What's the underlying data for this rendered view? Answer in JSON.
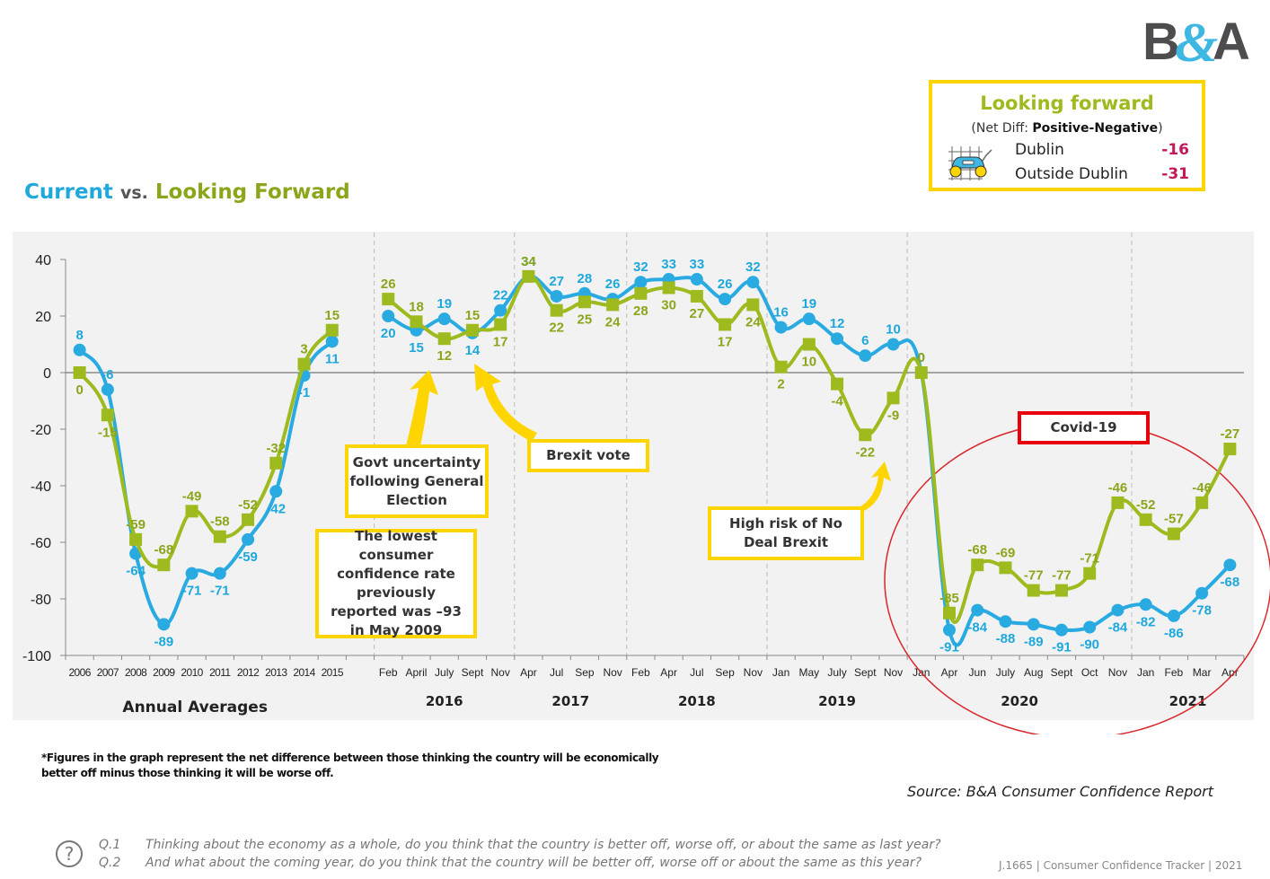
{
  "logo": {
    "text_left": "B",
    "amp": "&",
    "text_right": "A"
  },
  "looking_forward_box": {
    "title": "Looking forward",
    "subtitle_prefix": "(Net Diff: ",
    "subtitle_bold": "Positive-Negative",
    "subtitle_suffix": ")",
    "icon": "chart-car-icon",
    "rows": [
      {
        "label": "Dublin",
        "value": "-16"
      },
      {
        "label": "Outside Dublin",
        "value": "-31"
      }
    ]
  },
  "page_title": {
    "current": "Current",
    "vs": "vs.",
    "forward": "Looking Forward"
  },
  "colors": {
    "current": "#29ABE2",
    "forward": "#9DBB1E",
    "current_label": "#1EA8DC",
    "forward_label": "#8AA61A",
    "callout_border": "#FFD500",
    "covid_border": "#E8000C",
    "negative_value": "#C2185B"
  },
  "annotations": {
    "govt": "Govt uncertainty following General Election",
    "brexit_vote": "Brexit vote",
    "lowest": "The lowest consumer confidence rate previously reported was –93 in May 2009",
    "no_deal": "High risk of No Deal Brexit",
    "covid": "Covid-19"
  },
  "chart_data": {
    "type": "line",
    "title": "Current vs. Looking Forward",
    "ylim": [
      -100,
      40
    ],
    "yticks": [
      40,
      20,
      0,
      -20,
      -40,
      -60,
      -80,
      -100
    ],
    "grid": false,
    "categories": [
      "2006",
      "2007",
      "2008",
      "2009",
      "2010",
      "2011",
      "2012",
      "2013",
      "2014",
      "2015",
      "",
      "Feb",
      "April",
      "July",
      "Sept",
      "Nov",
      "Apr",
      "Jul",
      "Sep",
      "Nov",
      "Feb",
      "Apr",
      "Jul",
      "Sep",
      "Nov",
      "Jan",
      "May",
      "July",
      "Sept",
      "Nov",
      "Jan",
      "Apr",
      "Jun",
      "July",
      "Aug",
      "Sept",
      "Oct",
      "Nov",
      "Jan",
      "Feb",
      "Mar",
      "Apr"
    ],
    "group_labels": [
      {
        "label": "Annual Averages",
        "from": 0,
        "to": 9
      },
      {
        "label": "2016",
        "from": 11,
        "to": 15
      },
      {
        "label": "2017",
        "from": 16,
        "to": 19
      },
      {
        "label": "2018",
        "from": 20,
        "to": 24
      },
      {
        "label": "2019",
        "from": 25,
        "to": 29
      },
      {
        "label": "2020",
        "from": 30,
        "to": 37
      },
      {
        "label": "2021",
        "from": 38,
        "to": 41
      }
    ],
    "separators": [
      10.5,
      15.5,
      19.5,
      24.5,
      29.5,
      37.5
    ],
    "series": [
      {
        "name": "Current",
        "marker": "circle",
        "segments": [
          [
            8,
            -6,
            -64,
            -89,
            -71,
            -71,
            -59,
            -42,
            -1,
            11
          ],
          [
            20,
            15,
            19,
            14,
            22,
            34,
            27,
            28,
            26,
            32,
            33,
            33,
            26,
            32,
            16,
            19,
            12,
            6,
            10,
            0,
            -91,
            -84,
            -88,
            -89,
            -91,
            -90,
            -84,
            -82,
            -86,
            -78,
            -68
          ]
        ]
      },
      {
        "name": "Looking Forward",
        "marker": "square",
        "segments": [
          [
            0,
            -15,
            -59,
            -68,
            -49,
            -58,
            -52,
            -32,
            3,
            15
          ],
          [
            26,
            18,
            12,
            15,
            17,
            34,
            22,
            25,
            24,
            28,
            30,
            27,
            17,
            24,
            2,
            10,
            -4,
            -22,
            -9,
            0,
            -85,
            -68,
            -69,
            -77,
            -77,
            -71,
            -46,
            -52,
            -57,
            -46,
            -27
          ]
        ]
      }
    ]
  },
  "footnote": [
    "*Figures in the graph represent the net difference between those thinking the country will be economically",
    "better off minus those thinking it will be worse off."
  ],
  "source": "Source:  B&A Consumer Confidence Report",
  "questions": [
    {
      "num": "Q.1",
      "text": "Thinking about the economy as a whole, do you think that the country is better off, worse off, or about the same as last year?"
    },
    {
      "num": "Q.2",
      "text": "And what about the coming year, do you think that the country will be better off, worse off or about the same as this year?"
    }
  ],
  "job_ref": "J.1665  |  Consumer Confidence Tracker  |  2021"
}
